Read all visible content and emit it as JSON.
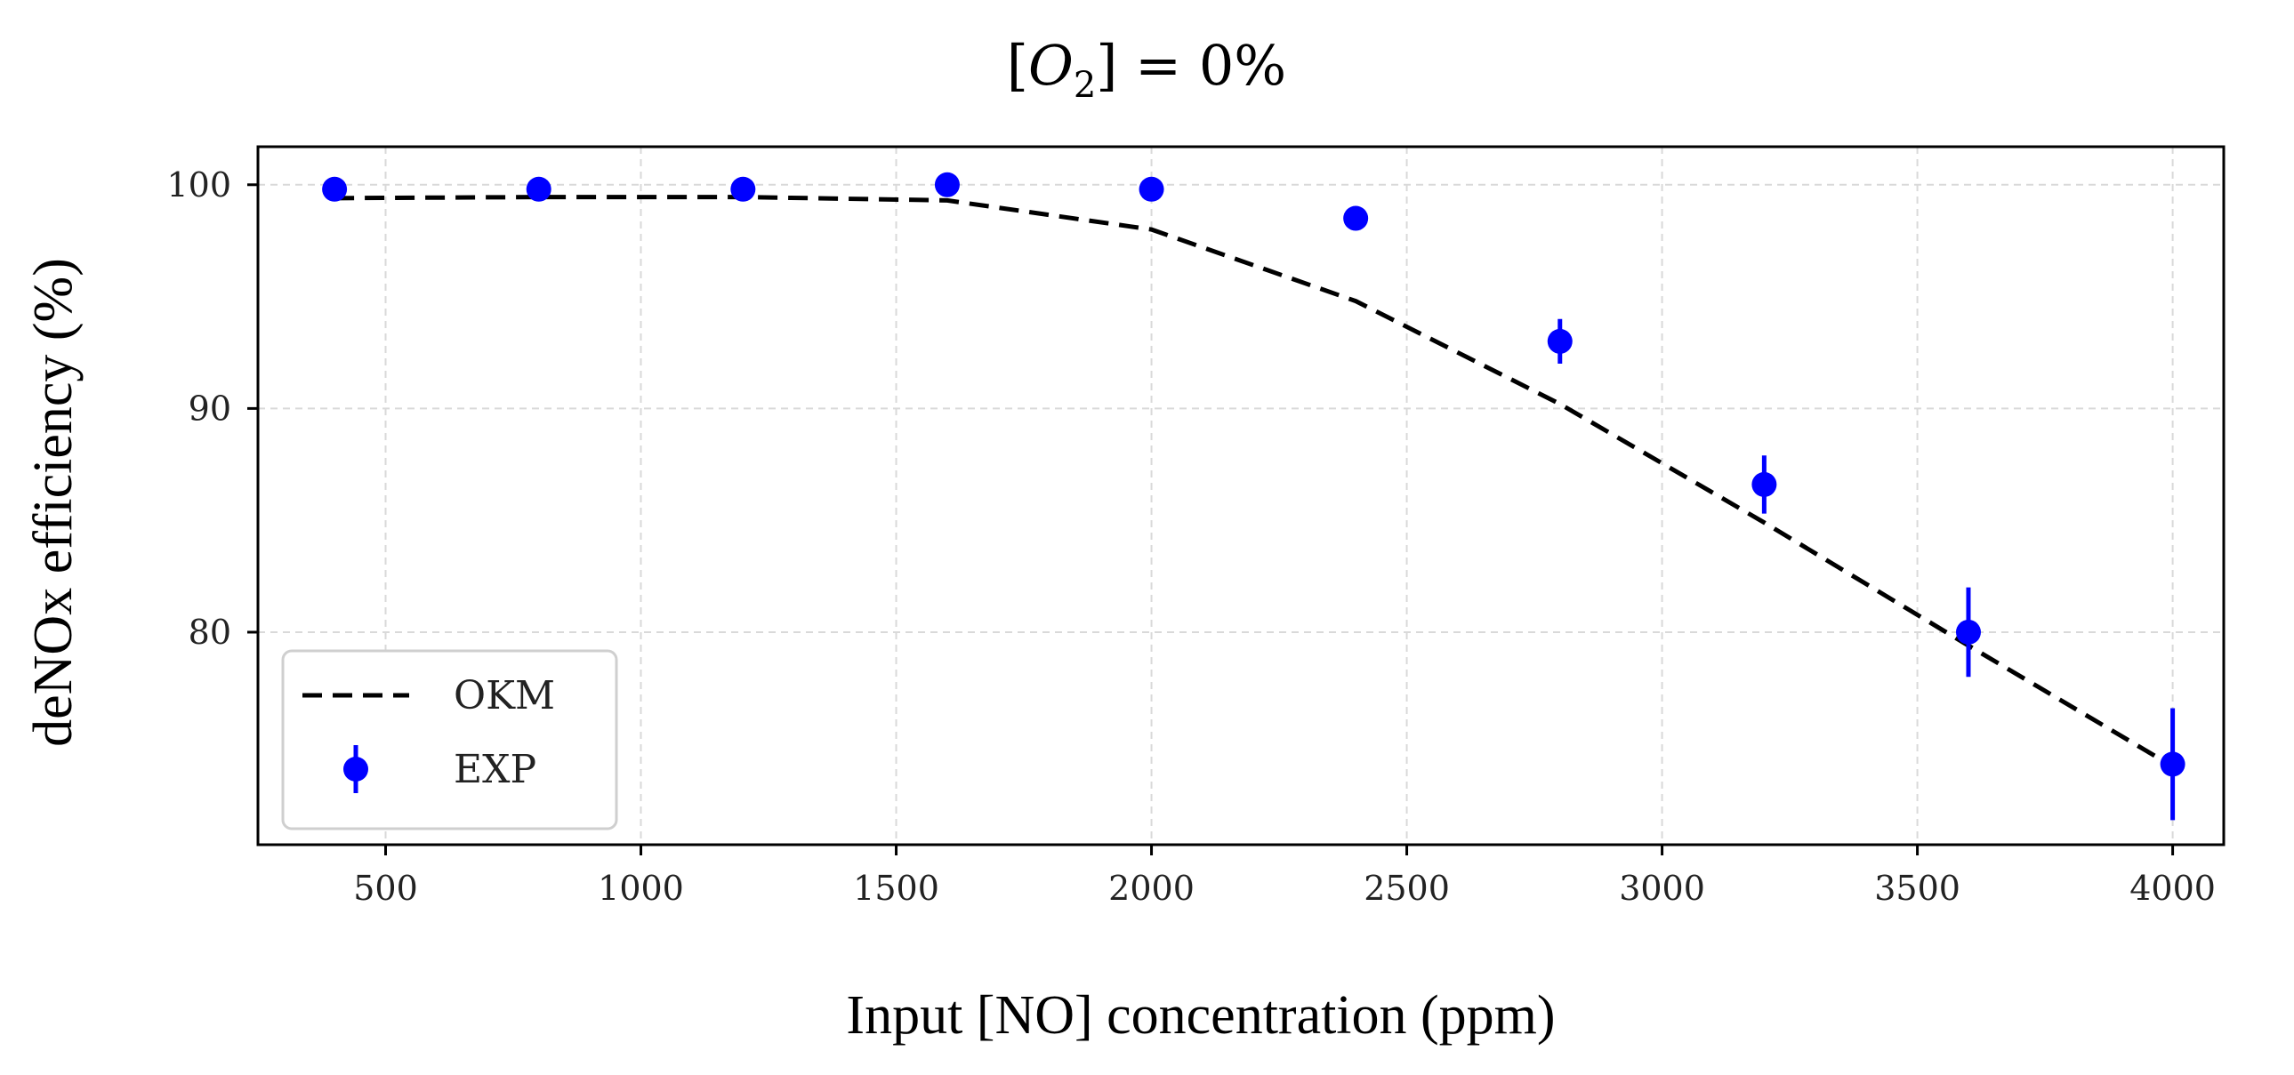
{
  "chart_data": {
    "type": "line",
    "title_parts": {
      "lbracket": "[",
      "var": "O",
      "sub": "2",
      "rest": "] = 0%"
    },
    "xlabel": "Input [NO] concentration (ppm)",
    "ylabel": "deNOx efficiency (%)",
    "xlim": [
      250,
      4100
    ],
    "ylim": [
      70.5,
      101.7
    ],
    "xticks": [
      500,
      1000,
      1500,
      2000,
      2500,
      3000,
      3500,
      4000
    ],
    "xtick_labels": [
      "500",
      "1000",
      "1500",
      "2000",
      "2500",
      "3000",
      "3500",
      "4000"
    ],
    "yticks": [
      80,
      90,
      100
    ],
    "ytick_labels": [
      "80",
      "90",
      "100"
    ],
    "grid": true,
    "legend_position": "lower-left",
    "series": [
      {
        "name": "OKM",
        "style": "dashed-line",
        "color": "#000000",
        "x": [
          400,
          800,
          1200,
          1600,
          2000,
          2400,
          2800,
          3200,
          3600,
          4000
        ],
        "y": [
          99.4,
          99.45,
          99.45,
          99.3,
          98.0,
          94.8,
          90.2,
          84.9,
          79.4,
          74.0
        ]
      },
      {
        "name": "EXP",
        "style": "points-with-errorbars",
        "color": "#0000ff",
        "x": [
          400,
          800,
          1200,
          1600,
          2000,
          2400,
          2800,
          3200,
          3600,
          4000
        ],
        "y": [
          99.8,
          99.8,
          99.8,
          100.0,
          99.8,
          98.5,
          93.0,
          86.6,
          80.0,
          74.1
        ],
        "err": [
          0.2,
          0.2,
          0.2,
          0.2,
          0.2,
          0.3,
          1.0,
          1.3,
          2.0,
          2.5
        ]
      }
    ],
    "legend_labels": [
      "OKM",
      "EXP"
    ]
  }
}
